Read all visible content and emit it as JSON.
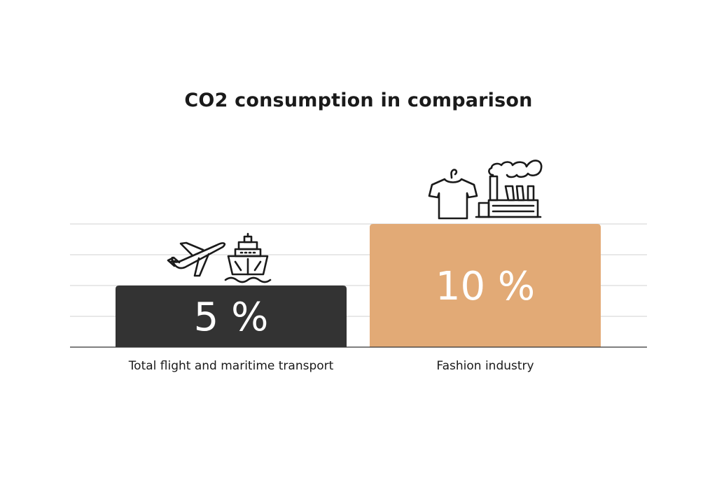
{
  "chart_data": {
    "type": "bar",
    "title": "CO2 consumption in comparison",
    "categories": [
      "Total flight and maritime transport",
      "Fashion industry"
    ],
    "values": [
      5,
      10
    ],
    "value_labels": [
      "5 %",
      "10 %"
    ],
    "ylim": [
      0,
      10
    ],
    "grid": true,
    "xlabel": "",
    "ylabel": "",
    "icons": [
      [
        "airplane-icon",
        "ship-icon"
      ],
      [
        "t-shirt-icon",
        "factory-icon"
      ]
    ],
    "colors": [
      "#333333",
      "#e2aa76"
    ]
  }
}
